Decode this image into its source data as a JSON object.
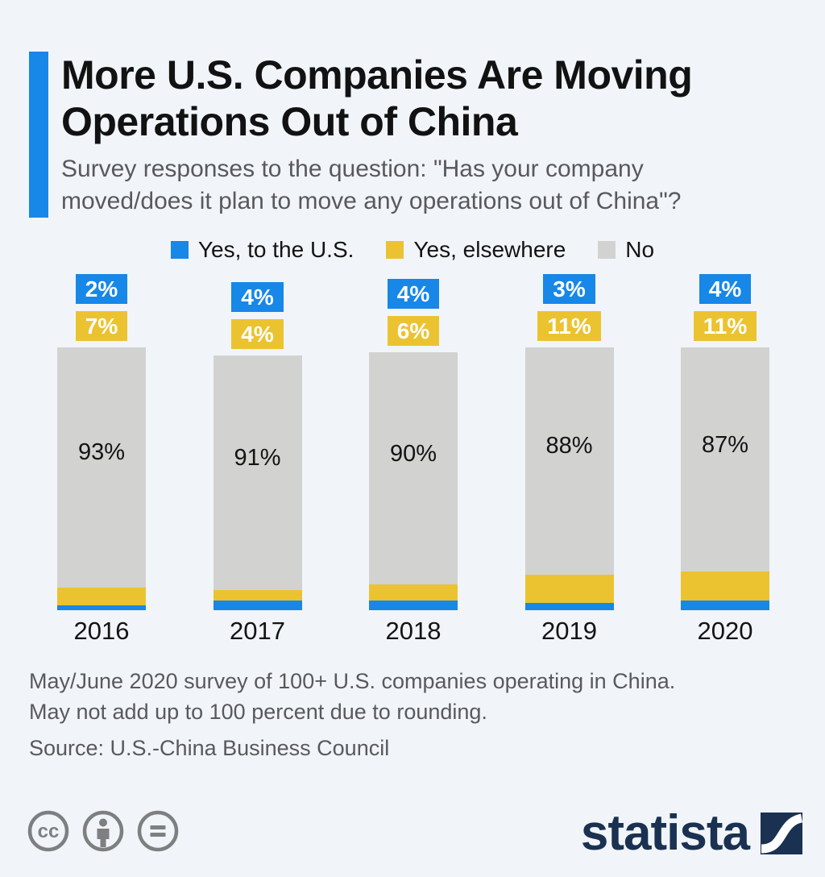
{
  "header": {
    "title_line1": "More U.S. Companies Are Moving",
    "title_line2": "Operations Out of China",
    "subtitle_line1": "Survey responses to the question: \"Has your company",
    "subtitle_line2": "moved/does it plan to move any operations out of China\"?"
  },
  "chart_data": {
    "type": "bar",
    "stacked": true,
    "orientation": "vertical",
    "categories": [
      "2016",
      "2017",
      "2018",
      "2019",
      "2020"
    ],
    "series": [
      {
        "name": "Yes, to the U.S.",
        "color": "#1787e8",
        "values": [
          2,
          4,
          4,
          3,
          4
        ]
      },
      {
        "name": "Yes, elsewhere",
        "color": "#ebc331",
        "values": [
          7,
          4,
          6,
          11,
          11
        ]
      },
      {
        "name": "No",
        "color": "#d2d2d1",
        "values": [
          93,
          91,
          90,
          88,
          87
        ]
      }
    ],
    "unit": "%",
    "ylim": [
      0,
      102
    ],
    "grid": false,
    "legend_position": "top",
    "label_style": "blue and yellow values shown as floating boxes above each bar; gray value shown inside bar"
  },
  "footer": {
    "note_line1": "May/June 2020 survey of 100+ U.S. companies operating in China.",
    "note_line2": "May not add up to 100 percent due to rounding.",
    "source": "Source: U.S.-China Business Council"
  },
  "branding": {
    "logo_text": "statista",
    "icons": [
      "cc-icon",
      "attribution-icon",
      "no-derivatives-icon",
      "statista-logo-mark"
    ]
  },
  "colors": {
    "background": "#f1f5f9",
    "accent_blue": "#1787e8",
    "yellow": "#ebc331",
    "gray_bar": "#d2d2d1",
    "title_text": "#121212",
    "subtitle_text": "#58595c",
    "logo_navy": "#1a3151",
    "cc_icon_gray": "#7d7f80"
  }
}
